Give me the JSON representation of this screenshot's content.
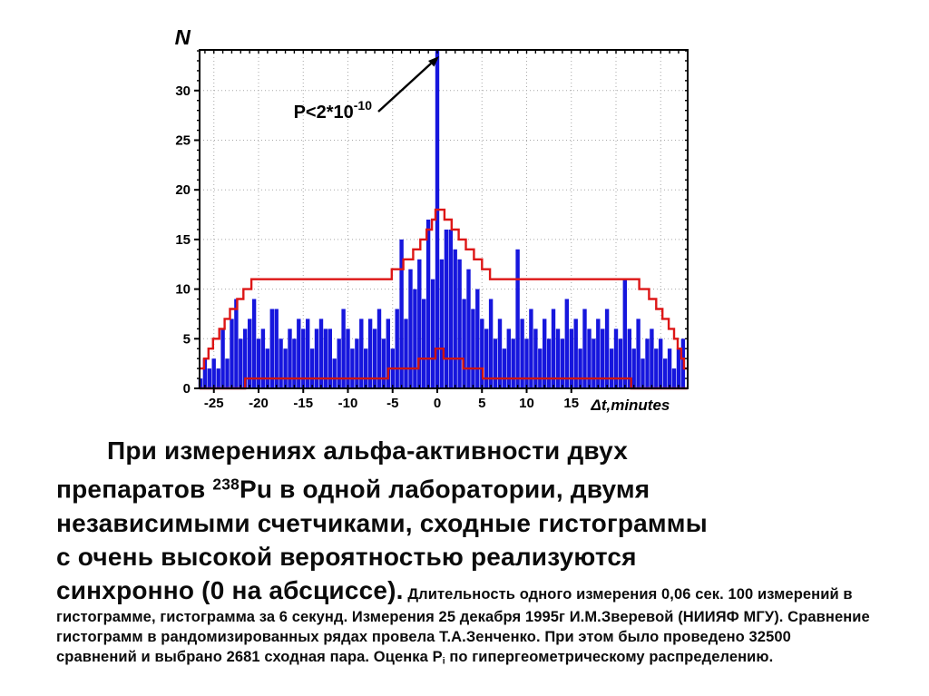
{
  "chart_data": {
    "type": "bar",
    "title": "",
    "xlabel": "Δt,minutes",
    "ylabel": "N",
    "xlim": [
      -26.6,
      28.0
    ],
    "ylim": [
      0,
      34.1
    ],
    "x_ticks": [
      -25,
      -20,
      -15,
      -10,
      -5,
      0,
      5,
      10,
      15
    ],
    "y_ticks": [
      0,
      5,
      10,
      15,
      20,
      25,
      30
    ],
    "grid_x": [
      -25,
      -20,
      -15,
      -10,
      -5,
      0,
      5,
      10,
      15,
      20,
      25
    ],
    "grid_y": [
      5,
      10,
      15,
      20,
      25,
      30
    ],
    "grid_on": true,
    "legend": "none",
    "annotation": {
      "base": "P<2*10",
      "exp": "-10",
      "points_to_x": 0,
      "points_to_y": 34
    },
    "bins": {
      "x_start": -26.5,
      "x_step": 0.5,
      "values": [
        1,
        3,
        2,
        3,
        2,
        6,
        3,
        7,
        9,
        5,
        6,
        7,
        9,
        5,
        6,
        4,
        8,
        8,
        5,
        4,
        6,
        5,
        7,
        6,
        7,
        4,
        6,
        7,
        6,
        6,
        3,
        5,
        8,
        6,
        4,
        5,
        7,
        4,
        7,
        6,
        8,
        5,
        7,
        4,
        8,
        15,
        7,
        12,
        10,
        13,
        9,
        17,
        11,
        34,
        13,
        16,
        16,
        14,
        13,
        9,
        12,
        8,
        10,
        7,
        6,
        9,
        5,
        7,
        4,
        6,
        5,
        14,
        7,
        5,
        8,
        6,
        4,
        7,
        5,
        8,
        6,
        5,
        9,
        6,
        7,
        4,
        8,
        6,
        5,
        7,
        6,
        8,
        4,
        6,
        5,
        11,
        6,
        4,
        7,
        3,
        5,
        6,
        4,
        5,
        3,
        4,
        2,
        4,
        5
      ]
    },
    "series": [
      {
        "name": "similar-pairs-histogram",
        "type": "bar",
        "color": "#1616dd"
      },
      {
        "name": "upper-envelope",
        "type": "step",
        "color": "#dd1616",
        "points": [
          [
            -26.6,
            2
          ],
          [
            -26.1,
            3
          ],
          [
            -25.6,
            4
          ],
          [
            -25.1,
            5
          ],
          [
            -24.4,
            6
          ],
          [
            -23.8,
            7
          ],
          [
            -23.2,
            8
          ],
          [
            -22.4,
            9
          ],
          [
            -21.7,
            10
          ],
          [
            -20.8,
            11
          ],
          [
            -5.1,
            12
          ],
          [
            -3.8,
            13
          ],
          [
            -2.7,
            14
          ],
          [
            -1.9,
            15
          ],
          [
            -1.2,
            16
          ],
          [
            -0.6,
            17
          ],
          [
            -0.2,
            18
          ],
          [
            0.8,
            17
          ],
          [
            1.6,
            16
          ],
          [
            2.4,
            15
          ],
          [
            3.2,
            14
          ],
          [
            4.1,
            13
          ],
          [
            5.0,
            12
          ],
          [
            5.9,
            11
          ],
          [
            22.6,
            10
          ],
          [
            23.7,
            9
          ],
          [
            24.5,
            8
          ],
          [
            25.2,
            7
          ],
          [
            25.9,
            6
          ],
          [
            26.5,
            5
          ],
          [
            26.9,
            4
          ],
          [
            27.3,
            3
          ],
          [
            27.6,
            2
          ]
        ]
      },
      {
        "name": "lower-envelope",
        "type": "step",
        "color": "#cc1414",
        "points": [
          [
            -26.6,
            0
          ],
          [
            -21.5,
            1
          ],
          [
            -5.5,
            2
          ],
          [
            -2.1,
            3
          ],
          [
            -0.2,
            4
          ],
          [
            0.7,
            3
          ],
          [
            2.9,
            2
          ],
          [
            5.1,
            1
          ],
          [
            21.7,
            0
          ]
        ]
      }
    ],
    "axis_color": "#000000",
    "grid_color": "#a8a8a8"
  },
  "caption": {
    "large_1": "При измерениях альфа-активности двух\nпрепаратов ",
    "isotope_mass": "238",
    "large_2": "Pu в одной лаборатории, двумя\nнезависимыми счетчиками, сходные гистограммы\nс очень высокой вероятностью реализуются\nсинхронно (0 на абсциссе).",
    "small_1": " Длительность одного измерения 0,06 сек. 100 измерений в гистограмме, гистограмма за 6 секунд. Измерения 25 декабря 1995г  И.М.Зверевой (НИИЯФ МГУ). Сравнение гистограмм в рандомизированных рядах провела Т.А.Зенченко. При этом было проведено 32500 сравнений и выбрано 2681 сходная пара. Оценка P",
    "small_sub": "i",
    "small_2": " по гипергеометрическому распределению."
  }
}
